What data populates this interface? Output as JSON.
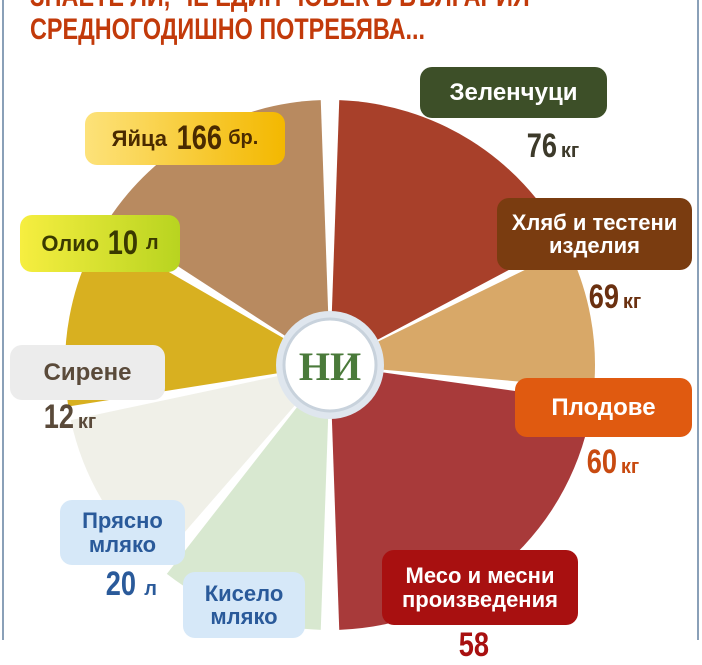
{
  "title": {
    "line1": "ЗНАЕТЕ ЛИ, ЧЕ ЕДИН ЧОВЕК В БЪЛГАРИЯ",
    "line2": "СРЕДНОГОДИШНО ПОТРЕБЯВА..."
  },
  "logo": "НИ",
  "items": {
    "eggs": {
      "label": "Яйца",
      "value": "166",
      "unit": "бр."
    },
    "oil": {
      "label": "Олио",
      "value": "10",
      "unit": "л"
    },
    "cheese": {
      "label": "Сирене",
      "value": "12",
      "unit": "кг"
    },
    "fresh_milk": {
      "label": "Прясно мляко",
      "value": "20",
      "unit": "л"
    },
    "yogurt": {
      "label": "Кисело мляко"
    },
    "vegetables": {
      "label": "Зеленчуци",
      "value": "76",
      "unit": "кг"
    },
    "bread": {
      "label": "Хляб и тестени изделия",
      "value": "69",
      "unit": "кг"
    },
    "fruits": {
      "label": "Плодове",
      "value": "60",
      "unit": "кг"
    },
    "meat": {
      "label": "Месо и месни произведения",
      "value": "58"
    }
  },
  "colors": {
    "title": "#c23a0a",
    "vegetables": "#3d4f28",
    "bread": "#7a3c10",
    "fruits": "#e05a10",
    "meat": "#a81010",
    "milk_box": "#d6e8f8",
    "milk_text": "#2a5a9a"
  }
}
